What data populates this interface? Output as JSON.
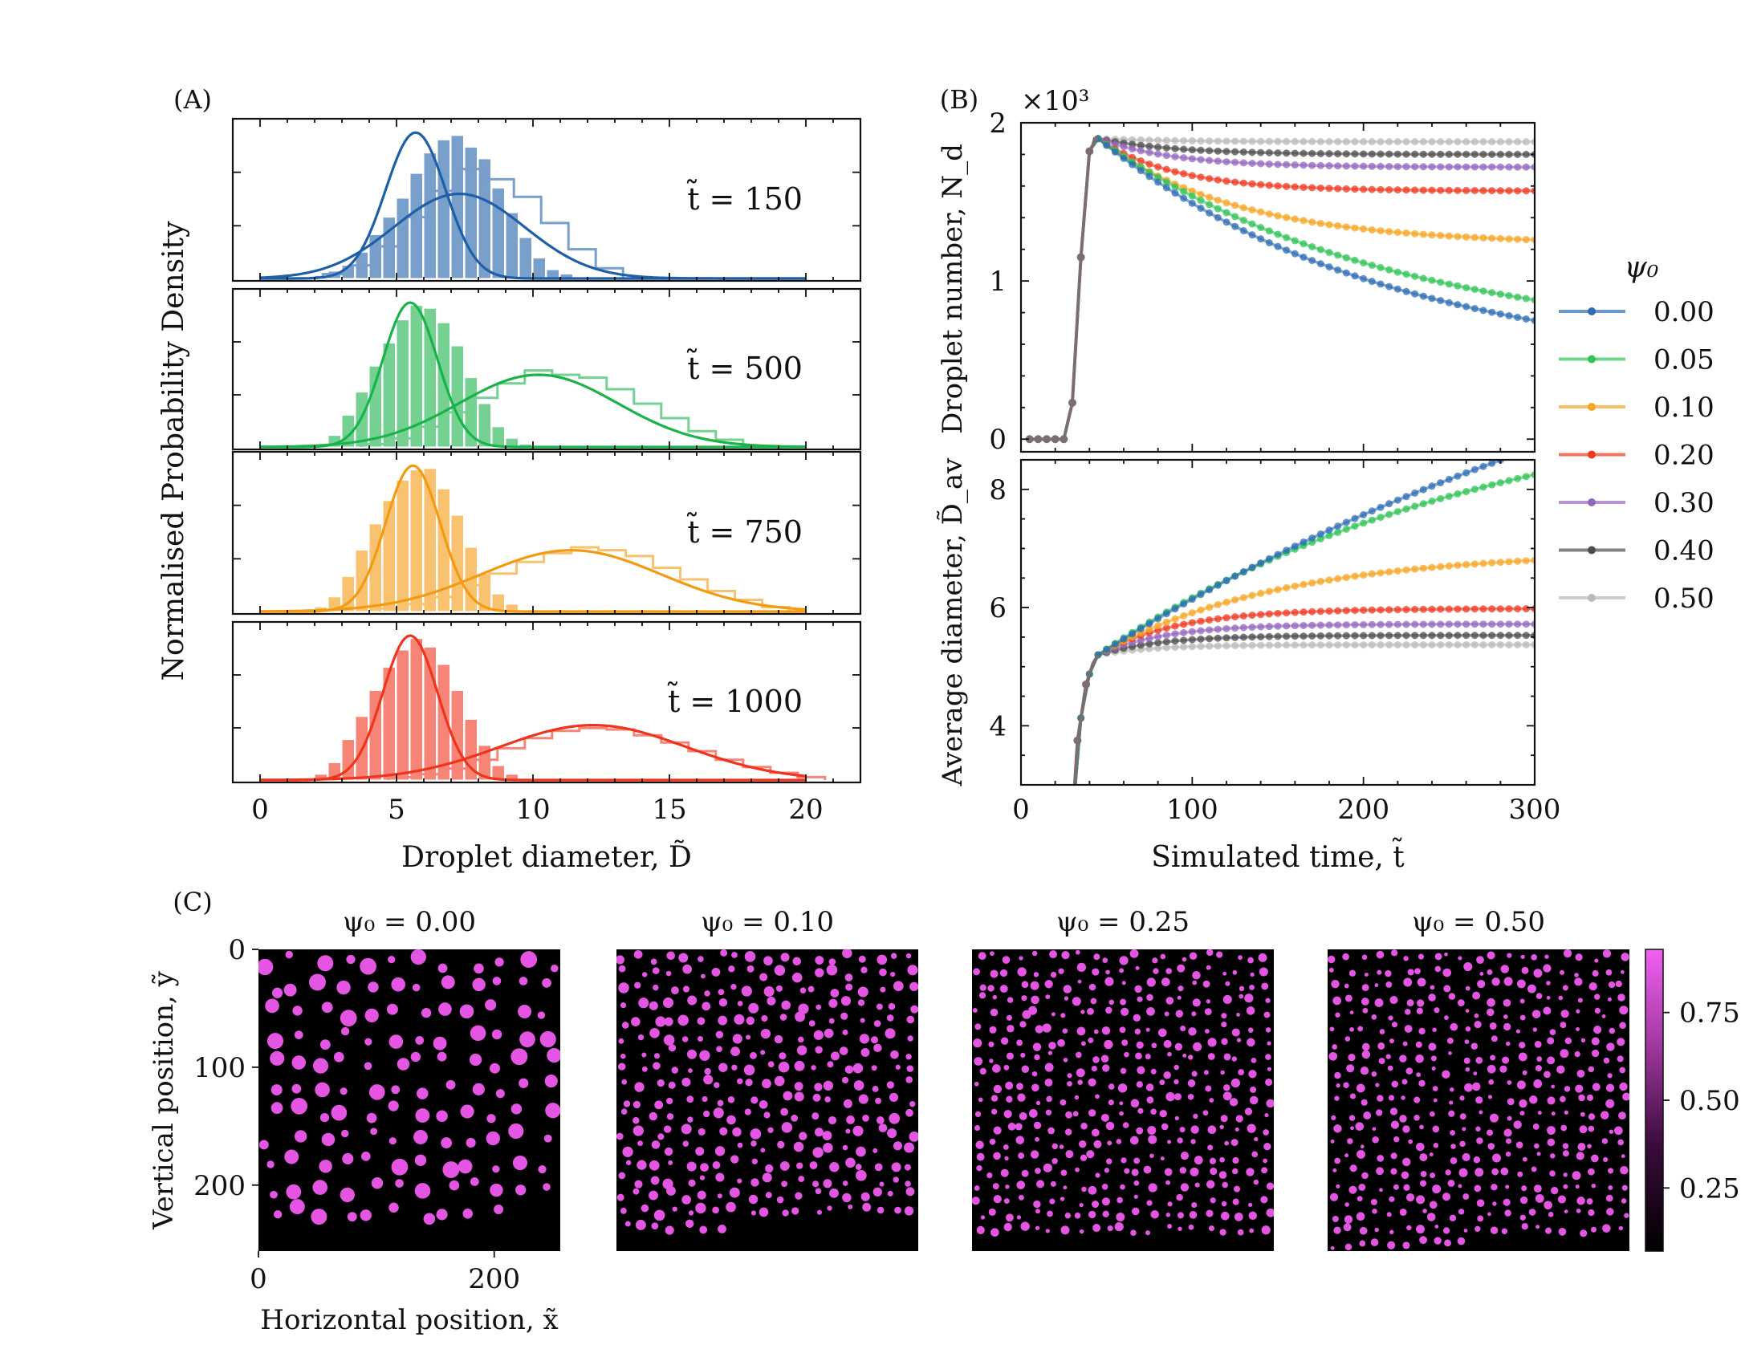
{
  "chart_data": [
    {
      "panel": "(A)",
      "type": "bar",
      "xlabel": "Droplet diameter, D̃",
      "ylabel": "Normalised Probability Density",
      "xlim": [
        -1,
        22
      ],
      "xticks": [
        "0",
        "5",
        "10",
        "15",
        "20"
      ],
      "bin_width": 0.5,
      "hist_start": 2.0,
      "big_bin_width": 1.0,
      "subplots": [
        {
          "label": "t̃ = 150",
          "color": "#1f5fa8",
          "small_peak": 5.7,
          "small_sigma": 1.1,
          "small_amp": 1.0,
          "large_peak": 7.3,
          "large_sigma": 2.4,
          "large_amp": 0.58,
          "hist_heights": [
            0.02,
            0.05,
            0.09,
            0.18,
            0.3,
            0.42,
            0.55,
            0.72,
            0.86,
            0.95,
            0.98,
            0.9,
            0.82,
            0.62,
            0.45,
            0.28,
            0.14,
            0.06,
            0.03
          ],
          "big_hist_heights": [
            0.03,
            0.09,
            0.22,
            0.42,
            0.6,
            0.75,
            0.68,
            0.56,
            0.38,
            0.2,
            0.07
          ]
        },
        {
          "label": "t̃ = 500",
          "color": "#19b34a",
          "small_peak": 5.5,
          "small_sigma": 1.0,
          "small_amp": 1.0,
          "large_peak": 10.2,
          "large_sigma": 2.9,
          "large_amp": 0.5,
          "hist_heights": [
            0.02,
            0.08,
            0.22,
            0.38,
            0.56,
            0.72,
            0.88,
            0.98,
            0.96,
            0.86,
            0.7,
            0.48,
            0.3,
            0.14,
            0.06,
            0.02
          ],
          "big_hist_heights": [
            0.02,
            0.06,
            0.14,
            0.24,
            0.34,
            0.44,
            0.53,
            0.5,
            0.48,
            0.4,
            0.3,
            0.2,
            0.11,
            0.05
          ]
        },
        {
          "label": "t̃ = 750",
          "color": "#f49a10",
          "small_peak": 5.6,
          "small_sigma": 1.0,
          "small_amp": 1.0,
          "large_peak": 11.4,
          "large_sigma": 3.3,
          "large_amp": 0.42,
          "hist_heights": [
            0.03,
            0.1,
            0.24,
            0.42,
            0.6,
            0.76,
            0.9,
            0.97,
            0.98,
            0.84,
            0.66,
            0.44,
            0.26,
            0.12,
            0.05
          ],
          "big_hist_heights": [
            0.02,
            0.05,
            0.1,
            0.18,
            0.26,
            0.34,
            0.4,
            0.44,
            0.42,
            0.38,
            0.3,
            0.22,
            0.14,
            0.08,
            0.03
          ]
        },
        {
          "label": "t̃ = 1000",
          "color": "#f0331c",
          "small_peak": 5.5,
          "small_sigma": 1.0,
          "small_amp": 1.0,
          "large_peak": 12.2,
          "large_sigma": 3.4,
          "large_amp": 0.38,
          "hist_heights": [
            0.04,
            0.12,
            0.28,
            0.44,
            0.62,
            0.78,
            0.9,
            0.98,
            0.92,
            0.8,
            0.62,
            0.42,
            0.24,
            0.1,
            0.04
          ],
          "big_hist_heights": [
            0.02,
            0.04,
            0.08,
            0.14,
            0.22,
            0.29,
            0.34,
            0.36,
            0.35,
            0.31,
            0.26,
            0.2,
            0.14,
            0.09,
            0.05,
            0.02
          ]
        }
      ]
    },
    {
      "panel": "(B)",
      "type": "line",
      "xlabel": "Simulated time, t̃",
      "xlim": [
        0,
        300
      ],
      "xticks": [
        "0",
        "100",
        "200",
        "300"
      ],
      "legend_title": "ψ₀",
      "legend_placement": "right",
      "series": [
        {
          "name": "0.00",
          "color": "#2d6db5",
          "Nd_end": 0.75,
          "Dav_end": 8.7,
          "Dav_rate": 0.6
        },
        {
          "name": "0.05",
          "color": "#2fc455",
          "Nd_end": 0.88,
          "Dav_end": 8.25,
          "Dav_rate": 1.1
        },
        {
          "name": "0.10",
          "color": "#f5a623",
          "Nd_end": 1.26,
          "Dav_end": 6.8,
          "Dav_rate": 2.4
        },
        {
          "name": "0.20",
          "color": "#f03a20",
          "Nd_end": 1.57,
          "Dav_end": 5.98,
          "Dav_rate": 5.5
        },
        {
          "name": "0.30",
          "color": "#9467bd",
          "Nd_end": 1.72,
          "Dav_end": 5.72,
          "Dav_rate": 6.5
        },
        {
          "name": "0.40",
          "color": "#4d4d4d",
          "Nd_end": 1.8,
          "Dav_end": 5.53,
          "Dav_rate": 7.0
        },
        {
          "name": "0.50",
          "color": "#b9b9b9",
          "Nd_end": 1.88,
          "Dav_end": 5.37,
          "Dav_rate": 8.0
        }
      ],
      "top": {
        "ylabel": "Droplet number, N_d",
        "ylim": [
          -0.08,
          2.0
        ],
        "yticks": [
          "0",
          "1",
          "2"
        ],
        "multiplier": "×10³"
      },
      "bottom": {
        "ylabel": "Average diameter, D̃_av",
        "ylim": [
          3.0,
          8.5
        ],
        "yticks": [
          "4",
          "6",
          "8"
        ]
      }
    },
    {
      "panel": "(C)",
      "type": "heatmap",
      "xlabel": "Horizontal position, x̃",
      "ylabel": "Vertical position, ỹ",
      "xticks": [
        "0",
        "200"
      ],
      "yticks": [
        "0",
        "100",
        "200"
      ],
      "domain_size": 256,
      "colorbar_ticks": [
        "0.25",
        "0.50",
        "0.75"
      ],
      "colorbar_range": [
        0.07,
        0.93
      ],
      "colors": {
        "background": "#000000",
        "droplet": "#e455e4"
      },
      "maps": [
        {
          "title": "ψ₀ = 0.00",
          "droplet_count": 130,
          "radius": 5.5
        },
        {
          "title": "ψ₀ = 0.10",
          "droplet_count": 330,
          "radius": 3.6
        },
        {
          "title": "ψ₀ = 0.25",
          "droplet_count": 420,
          "radius": 3.0
        },
        {
          "title": "ψ₀ = 0.50",
          "droplet_count": 430,
          "radius": 2.9
        }
      ]
    }
  ]
}
